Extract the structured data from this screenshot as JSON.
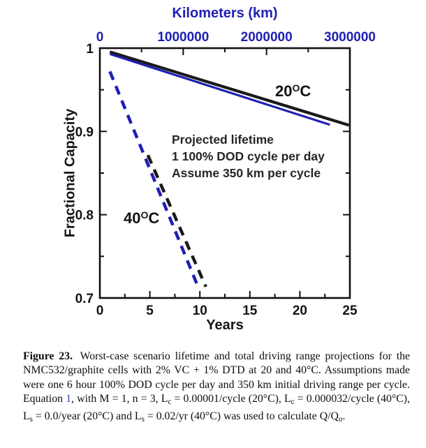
{
  "figure": {
    "top_axis_title": "Kilometers (km)",
    "xlabel": "Years",
    "ylabel": "Fractional Capacity",
    "note": {
      "line1": "Projected lifetime",
      "line2": "1 100% DOD cycle per day",
      "line3": "Assume 350 km per cycle"
    },
    "label_20": {
      "pre": "20",
      "sup": "O",
      "post": "C"
    },
    "label_40": {
      "pre": "40",
      "sup": "O",
      "post": "C"
    }
  },
  "chart_data": {
    "type": "line",
    "title": "",
    "xlabel": "Years",
    "ylabel": "Fractional Capacity",
    "xlim": [
      0,
      25
    ],
    "ylim": [
      0.7,
      1.0
    ],
    "x_major_ticks": [
      0,
      5,
      10,
      15,
      20,
      25
    ],
    "x_minor_step": 2.5,
    "y_major_ticks": [
      0.7,
      0.8,
      0.9,
      1.0
    ],
    "y_tick_labels": [
      "0.7",
      "0.8",
      "0.9",
      "1"
    ],
    "y_minor_step": 0.05,
    "grid": false,
    "legend": "none (inline temperature labels)",
    "top_axis": {
      "label": "Kilometers (km)",
      "lim": [
        0,
        3000000
      ],
      "major_ticks": [
        0,
        1000000,
        2000000,
        3000000
      ],
      "minor_step": 500000,
      "color": "#1f1fb4"
    },
    "series": [
      {
        "name": "20C projection vs years (black solid)",
        "color": "#1a1a1a",
        "style": "solid",
        "points": [
          [
            1.0,
            0.9955
          ],
          [
            24.9,
            0.9075
          ]
        ]
      },
      {
        "name": "20C projection vs kilometers (blue solid)",
        "color": "#1f1fb4",
        "style": "solid",
        "points": [
          [
            1.0,
            0.993
          ],
          [
            23.0,
            0.908
          ]
        ]
      },
      {
        "name": "40C projection vs years (black dashed, visible part)",
        "color": "#1a1a1a",
        "style": "dashed",
        "points": [
          [
            4.8,
            0.8715
          ],
          [
            10.6,
            0.7135
          ]
        ]
      },
      {
        "name": "40C projection vs kilometers (blue dashed)",
        "color": "#1f1fb4",
        "style": "dashed",
        "points": [
          [
            1.0,
            0.972
          ],
          [
            9.9,
            0.711
          ]
        ]
      }
    ],
    "annotations": [
      "Projected lifetime",
      "1 100% DOD cycle per day",
      "Assume 350 km per cycle",
      "20°C",
      "40°C"
    ],
    "colors": {
      "blue": "#1f1fb4",
      "black": "#1a1a1a",
      "axis": "#111111"
    }
  },
  "caption": {
    "segments": [
      {
        "text": "Figure 23.",
        "style": "bold"
      },
      {
        "text": " Worst-case scenario lifetime and total driving range projections for the NMC532/graphite cells with 2% VC + 1% DTD at 20 and 40°C. Assumptions made were one 6 hour 100% DOD cycle per day and 350 km initial driving range per cycle. Equation ",
        "style": "normal"
      },
      {
        "text": "1",
        "style": "link"
      },
      {
        "text": ", with M = 1, n = 3, L",
        "style": "normal"
      },
      {
        "text": "c",
        "style": "sub"
      },
      {
        "text": " = 0.00001/cycle (20°C), L",
        "style": "normal"
      },
      {
        "text": "c",
        "style": "sub"
      },
      {
        "text": " = 0.000032/cycle (40°C), L",
        "style": "normal"
      },
      {
        "text": "s",
        "style": "sub"
      },
      {
        "text": " = 0.0/year (20°C) and L",
        "style": "normal"
      },
      {
        "text": "s",
        "style": "sub"
      },
      {
        "text": " = 0.02/yr (40°C) was used to calculate Q/Q",
        "style": "normal"
      },
      {
        "text": "o",
        "style": "sub"
      },
      {
        "text": ".",
        "style": "normal"
      }
    ]
  }
}
